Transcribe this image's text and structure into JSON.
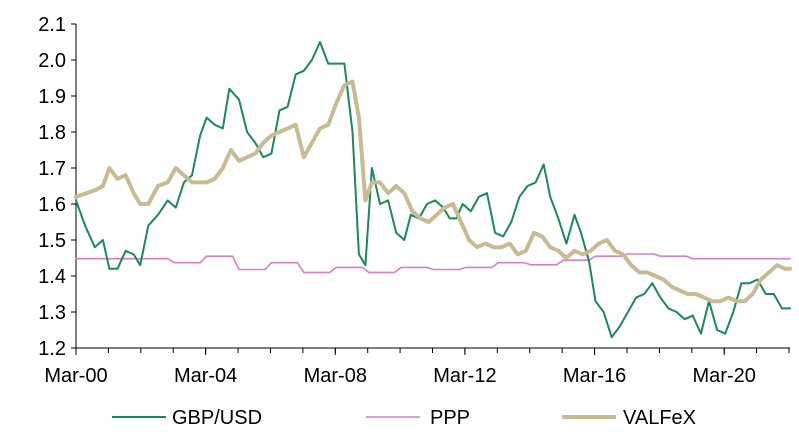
{
  "chart_data": {
    "type": "line",
    "title": "",
    "xlabel": "",
    "ylabel": "",
    "ylim": [
      1.2,
      2.1
    ],
    "yticks": [
      "1.2",
      "1.3",
      "1.4",
      "1.5",
      "1.6",
      "1.7",
      "1.8",
      "1.9",
      "2.0",
      "2.1"
    ],
    "xlim": [
      2000.17,
      2022.2
    ],
    "xticks": [
      {
        "label": "Mar-00",
        "value": 2000.17
      },
      {
        "label": "Mar-04",
        "value": 2004.17
      },
      {
        "label": "Mar-08",
        "value": 2008.17
      },
      {
        "label": "Mar-12",
        "value": 2012.17
      },
      {
        "label": "Mar-16",
        "value": 2016.17
      },
      {
        "label": "Mar-20",
        "value": 2020.17
      }
    ],
    "grid": false,
    "legend_position": "bottom",
    "series": [
      {
        "name": "GBP/USD",
        "color": "#1a8a5a",
        "width": 2,
        "x": [
          2000.17,
          2000.45,
          2000.75,
          2001.0,
          2001.2,
          2001.45,
          2001.7,
          2001.95,
          2002.15,
          2002.4,
          2002.7,
          2003.0,
          2003.25,
          2003.5,
          2003.75,
          2004.0,
          2004.2,
          2004.45,
          2004.7,
          2004.9,
          2005.2,
          2005.45,
          2005.7,
          2005.95,
          2006.2,
          2006.45,
          2006.7,
          2006.95,
          2007.2,
          2007.45,
          2007.7,
          2007.95,
          2008.2,
          2008.45,
          2008.7,
          2008.9,
          2009.1,
          2009.3,
          2009.55,
          2009.8,
          2010.05,
          2010.3,
          2010.5,
          2010.75,
          2011.0,
          2011.25,
          2011.5,
          2011.7,
          2011.9,
          2012.1,
          2012.35,
          2012.6,
          2012.85,
          2013.1,
          2013.35,
          2013.6,
          2013.85,
          2014.1,
          2014.35,
          2014.6,
          2014.8,
          2015.05,
          2015.3,
          2015.55,
          2015.75,
          2016.0,
          2016.2,
          2016.45,
          2016.7,
          2016.95,
          2017.2,
          2017.45,
          2017.7,
          2017.95,
          2018.2,
          2018.45,
          2018.7,
          2018.95,
          2019.2,
          2019.45,
          2019.7,
          2019.95,
          2020.2,
          2020.45,
          2020.7,
          2020.95,
          2021.2,
          2021.45,
          2021.7,
          2021.95,
          2022.2
        ],
        "y": [
          1.61,
          1.54,
          1.48,
          1.5,
          1.42,
          1.42,
          1.47,
          1.46,
          1.43,
          1.54,
          1.57,
          1.61,
          1.59,
          1.66,
          1.68,
          1.79,
          1.84,
          1.82,
          1.81,
          1.92,
          1.89,
          1.8,
          1.77,
          1.73,
          1.74,
          1.86,
          1.87,
          1.96,
          1.97,
          2.0,
          2.05,
          1.99,
          1.99,
          1.99,
          1.8,
          1.46,
          1.43,
          1.7,
          1.6,
          1.61,
          1.52,
          1.5,
          1.57,
          1.56,
          1.6,
          1.61,
          1.59,
          1.56,
          1.56,
          1.6,
          1.58,
          1.62,
          1.63,
          1.52,
          1.51,
          1.55,
          1.62,
          1.65,
          1.66,
          1.71,
          1.62,
          1.56,
          1.49,
          1.57,
          1.52,
          1.44,
          1.33,
          1.3,
          1.23,
          1.26,
          1.3,
          1.34,
          1.35,
          1.38,
          1.34,
          1.31,
          1.3,
          1.28,
          1.29,
          1.24,
          1.33,
          1.25,
          1.24,
          1.3,
          1.38,
          1.38,
          1.39,
          1.35,
          1.35,
          1.31,
          1.31
        ]
      },
      {
        "name": "PPP",
        "color": "#d77fc4",
        "width": 1.6,
        "x": [
          2000.17,
          2001.0,
          2002.0,
          2003.0,
          2003.2,
          2004.0,
          2004.2,
          2005.0,
          2005.2,
          2006.0,
          2006.2,
          2007.0,
          2007.2,
          2008.0,
          2008.2,
          2009.0,
          2009.2,
          2010.0,
          2010.2,
          2011.0,
          2011.2,
          2012.0,
          2012.2,
          2013.0,
          2013.2,
          2014.0,
          2014.2,
          2015.0,
          2015.2,
          2016.0,
          2016.2,
          2017.0,
          2017.2,
          2018.0,
          2018.2,
          2019.0,
          2019.2,
          2020.0,
          2020.2,
          2021.0,
          2021.2,
          2022.2
        ],
        "y": [
          1.448,
          1.448,
          1.448,
          1.448,
          1.437,
          1.437,
          1.455,
          1.455,
          1.418,
          1.418,
          1.437,
          1.437,
          1.41,
          1.41,
          1.424,
          1.424,
          1.41,
          1.41,
          1.424,
          1.424,
          1.418,
          1.418,
          1.424,
          1.424,
          1.437,
          1.437,
          1.431,
          1.431,
          1.444,
          1.444,
          1.455,
          1.455,
          1.461,
          1.461,
          1.455,
          1.455,
          1.448,
          1.448,
          1.448,
          1.448,
          1.448,
          1.448
        ]
      },
      {
        "name": "VALFeX",
        "color": "#c8bb94",
        "width": 4,
        "x": [
          2000.17,
          2000.5,
          2000.8,
          2001.0,
          2001.2,
          2001.45,
          2001.7,
          2001.95,
          2002.15,
          2002.4,
          2002.7,
          2003.0,
          2003.25,
          2003.5,
          2003.75,
          2004.0,
          2004.2,
          2004.45,
          2004.7,
          2004.95,
          2005.2,
          2005.45,
          2005.7,
          2005.95,
          2006.2,
          2006.45,
          2006.7,
          2006.95,
          2007.2,
          2007.45,
          2007.7,
          2007.95,
          2008.2,
          2008.45,
          2008.7,
          2008.9,
          2009.1,
          2009.3,
          2009.55,
          2009.8,
          2010.05,
          2010.3,
          2010.55,
          2010.8,
          2011.05,
          2011.3,
          2011.55,
          2011.8,
          2012.05,
          2012.3,
          2012.55,
          2012.8,
          2013.05,
          2013.3,
          2013.55,
          2013.8,
          2014.05,
          2014.3,
          2014.55,
          2014.8,
          2015.05,
          2015.3,
          2015.55,
          2015.8,
          2016.05,
          2016.3,
          2016.55,
          2016.8,
          2017.05,
          2017.3,
          2017.55,
          2017.8,
          2018.05,
          2018.3,
          2018.55,
          2018.8,
          2019.05,
          2019.3,
          2019.55,
          2019.8,
          2020.05,
          2020.3,
          2020.55,
          2020.8,
          2021.05,
          2021.3,
          2021.55,
          2021.8,
          2022.05,
          2022.2
        ],
        "y": [
          1.62,
          1.63,
          1.64,
          1.65,
          1.7,
          1.67,
          1.68,
          1.63,
          1.6,
          1.6,
          1.65,
          1.66,
          1.7,
          1.68,
          1.66,
          1.66,
          1.66,
          1.67,
          1.7,
          1.75,
          1.72,
          1.73,
          1.74,
          1.77,
          1.79,
          1.8,
          1.81,
          1.82,
          1.73,
          1.77,
          1.81,
          1.82,
          1.88,
          1.93,
          1.94,
          1.84,
          1.61,
          1.66,
          1.66,
          1.63,
          1.65,
          1.63,
          1.58,
          1.56,
          1.55,
          1.57,
          1.59,
          1.6,
          1.55,
          1.5,
          1.48,
          1.49,
          1.48,
          1.48,
          1.49,
          1.46,
          1.47,
          1.52,
          1.51,
          1.48,
          1.47,
          1.45,
          1.47,
          1.46,
          1.47,
          1.49,
          1.5,
          1.47,
          1.46,
          1.43,
          1.41,
          1.41,
          1.4,
          1.39,
          1.37,
          1.36,
          1.35,
          1.35,
          1.34,
          1.33,
          1.33,
          1.34,
          1.33,
          1.33,
          1.35,
          1.39,
          1.41,
          1.43,
          1.42,
          1.42
        ]
      }
    ]
  }
}
